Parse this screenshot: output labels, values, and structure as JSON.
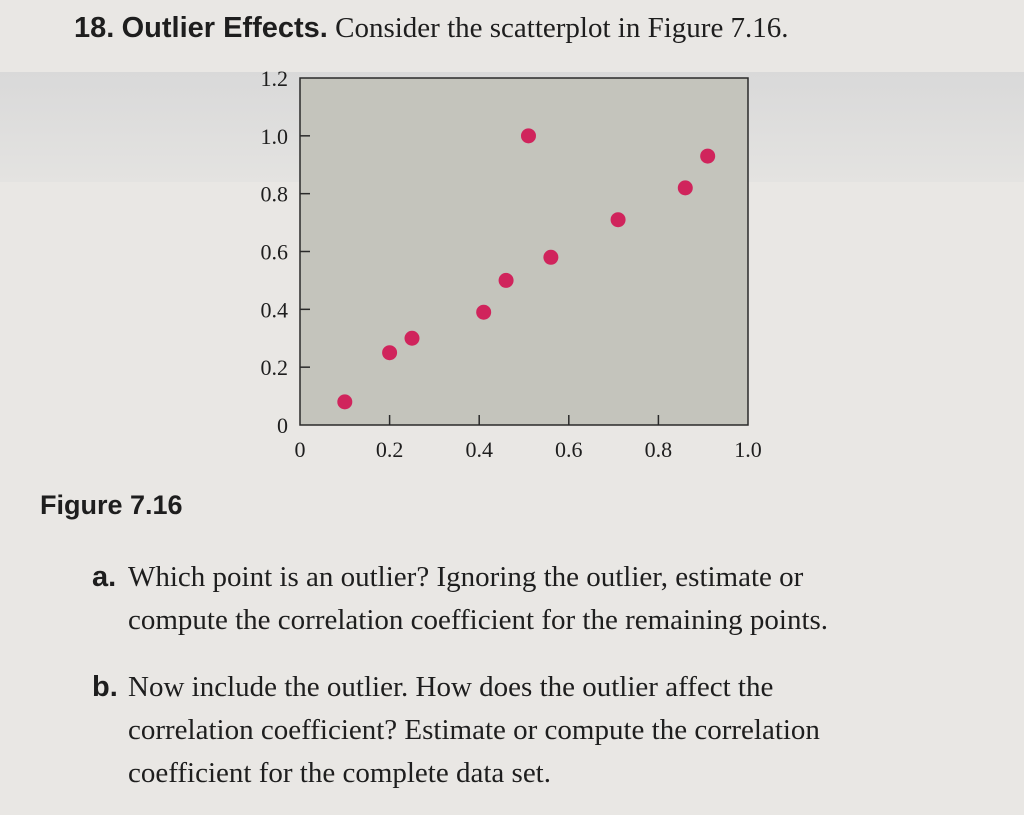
{
  "problem": {
    "number": "18.",
    "title": "Outlier Effects.",
    "instruction": "Consider the scatterplot in Figure 7.16."
  },
  "figure_caption": "Figure 7.16",
  "questions": [
    {
      "label": "a.",
      "line1": "Which point is an outlier? Ignoring the outlier, estimate or",
      "line2": "compute the correlation coefficient for the remaining points."
    },
    {
      "label": "b.",
      "line1": "Now include the outlier. How does the outlier affect the",
      "line2": "correlation coefficient? Estimate or compute the correlation",
      "line3": "coefficient for the complete data set."
    }
  ],
  "colors": {
    "plot_background": "#c4c4bc",
    "point": "#d0245c",
    "axis": "#2a2a2a"
  },
  "chart_data": {
    "type": "scatter",
    "title": "",
    "xlabel": "",
    "ylabel": "",
    "xlim": [
      0,
      1.0
    ],
    "ylim": [
      0,
      1.2
    ],
    "x_ticks": [
      "0",
      "0.2",
      "0.4",
      "0.6",
      "0.8",
      "1.0"
    ],
    "y_ticks": [
      "0",
      "0.2",
      "0.4",
      "0.6",
      "0.8",
      "1.0",
      "1.2"
    ],
    "grid": false,
    "points": [
      {
        "x": 0.1,
        "y": 0.08
      },
      {
        "x": 0.2,
        "y": 0.25
      },
      {
        "x": 0.25,
        "y": 0.3
      },
      {
        "x": 0.41,
        "y": 0.39
      },
      {
        "x": 0.46,
        "y": 0.5
      },
      {
        "x": 0.51,
        "y": 1.0
      },
      {
        "x": 0.56,
        "y": 0.58
      },
      {
        "x": 0.71,
        "y": 0.71
      },
      {
        "x": 0.86,
        "y": 0.82
      },
      {
        "x": 0.91,
        "y": 0.93
      }
    ]
  }
}
